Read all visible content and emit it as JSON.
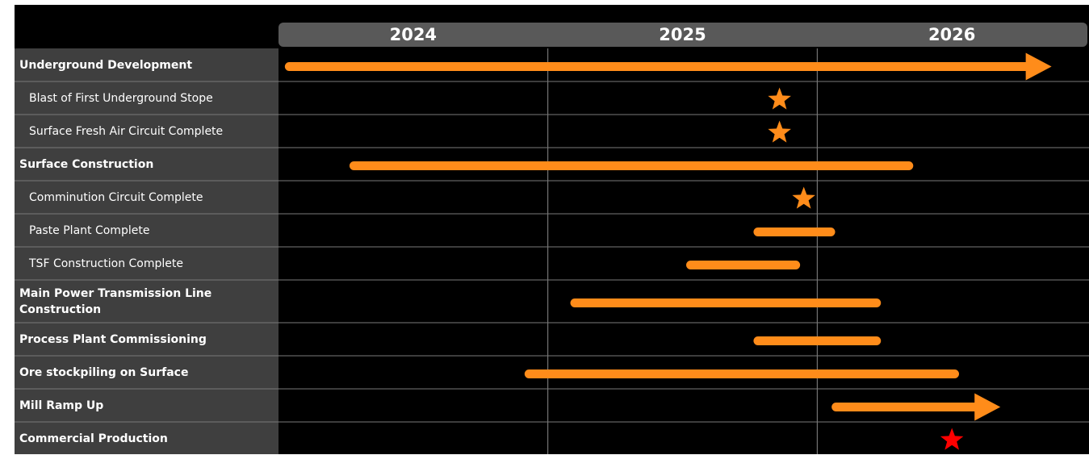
{
  "chart_data": {
    "type": "gantt",
    "xlim": [
      2024,
      2027
    ],
    "xticks": [
      2024,
      2025,
      2026
    ],
    "grid": true,
    "tasks": [
      {
        "name": "Underground Development",
        "group": true,
        "start": 2024.04,
        "end": 2026.87,
        "arrow": true,
        "color": "#ff8c1a"
      },
      {
        "name": "Blast of First Underground Stope",
        "group": false,
        "date": 2025.86,
        "color": "#ff8c1a"
      },
      {
        "name": "Surface Fresh Air Circuit Complete",
        "group": false,
        "date": 2025.86,
        "color": "#ff8c1a"
      },
      {
        "name": "Surface Construction",
        "group": true,
        "start": 2024.28,
        "end": 2026.34,
        "arrow": false,
        "color": "#ff8c1a"
      },
      {
        "name": "Comminution Circuit Complete",
        "group": false,
        "date": 2025.95,
        "color": "#ff8c1a"
      },
      {
        "name": "Paste Plant Complete",
        "group": false,
        "start": 2025.78,
        "end": 2026.05,
        "arrow": false,
        "color": "#ff8c1a"
      },
      {
        "name": "TSF Construction Complete",
        "group": false,
        "start": 2025.53,
        "end": 2025.92,
        "arrow": false,
        "color": "#ff8c1a"
      },
      {
        "name": "Main Power Transmission Line Construction",
        "group": true,
        "start": 2025.1,
        "end": 2026.22,
        "arrow": false,
        "color": "#ff8c1a"
      },
      {
        "name": "Process Plant Commissioning",
        "group": true,
        "start": 2025.78,
        "end": 2026.22,
        "arrow": false,
        "color": "#ff8c1a"
      },
      {
        "name": "Ore stockpiling on Surface",
        "group": true,
        "start": 2024.93,
        "end": 2026.51,
        "arrow": false,
        "color": "#ff8c1a"
      },
      {
        "name": "Mill Ramp Up",
        "group": true,
        "start": 2026.07,
        "end": 2026.68,
        "arrow": true,
        "color": "#ff8c1a"
      },
      {
        "name": "Commercial Production",
        "group": true,
        "date": 2026.5,
        "color": "#ff0000"
      }
    ]
  }
}
